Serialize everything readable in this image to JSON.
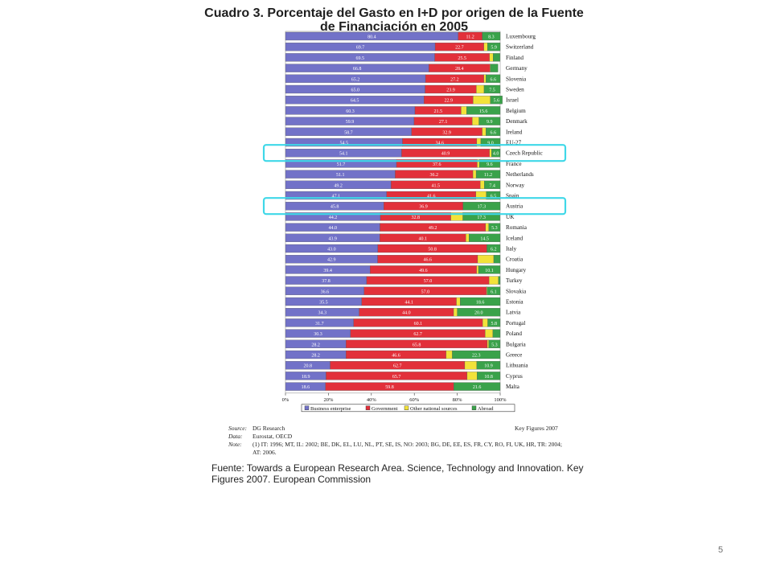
{
  "title": "Cuadro 3. Porcentaje del Gasto en I+D por origen de la Fuente de Financiación en 2005",
  "colors": {
    "business": "#7272c8",
    "government": "#e2303a",
    "other": "#f2e23a",
    "abroad": "#3aa24a",
    "highlight": "#3fd8e8"
  },
  "chart_data": {
    "type": "bar",
    "stacked": true,
    "orientation": "horizontal",
    "xlim": [
      0,
      100
    ],
    "x_ticks": [
      "0%",
      "20%",
      "40%",
      "60%",
      "80%",
      "100%"
    ],
    "categories": [
      "Luxembourg",
      "Switzerland",
      "Finland",
      "Germany",
      "Slovenia",
      "Sweden",
      "Israel",
      "Belgium",
      "Denmark",
      "Ireland",
      "EU-27",
      "Czech Republic",
      "France",
      "Netherlands",
      "Norway",
      "Spain",
      "Austria",
      "UK",
      "Romania",
      "Iceland",
      "Italy",
      "Croatia",
      "Hungary",
      "Turkey",
      "Slovakia",
      "Estonia",
      "Latvia",
      "Portugal",
      "Poland",
      "Bulgaria",
      "Greece",
      "Lithuania",
      "Cyprus",
      "Malta"
    ],
    "series": [
      {
        "name": "Business enterprise",
        "values": [
          80.4,
          69.7,
          69.5,
          66.8,
          65.2,
          65.0,
          64.5,
          60.3,
          59.9,
          58.7,
          54.5,
          54.1,
          51.7,
          51.1,
          49.2,
          47.1,
          45.8,
          44.2,
          44.0,
          43.9,
          43.0,
          42.9,
          39.4,
          37.8,
          36.6,
          35.5,
          34.3,
          31.7,
          30.3,
          28.2,
          28.2,
          20.8,
          18.9,
          18.6
        ]
      },
      {
        "name": "Government",
        "values": [
          11.2,
          22.7,
          25.5,
          28.4,
          27.2,
          23.9,
          22.9,
          21.5,
          27.1,
          32.9,
          34.6,
          40.9,
          37.6,
          36.2,
          41.5,
          41.6,
          36.9,
          32.8,
          49.2,
          40.1,
          50.8,
          46.6,
          49.6,
          57.0,
          57.0,
          44.1,
          44.0,
          60.1,
          62.7,
          65.8,
          46.6,
          62.7,
          65.7,
          59.8
        ]
      },
      {
        "name": "Other national sources",
        "values": [
          0.1,
          1.7,
          1.7,
          0.3,
          1.0,
          3.6,
          8.0,
          2.6,
          3.1,
          1.8,
          1.9,
          1.0,
          1.0,
          1.5,
          1.9,
          4.8,
          0.0,
          5.6,
          1.5,
          1.5,
          0.0,
          7.5,
          0.9,
          4.4,
          0.3,
          1.8,
          1.7,
          2.4,
          3.6,
          0.7,
          2.9,
          5.6,
          4.6,
          0.0
        ]
      },
      {
        "name": "Abroad",
        "values": [
          8.3,
          5.9,
          3.2,
          3.5,
          6.6,
          7.5,
          5.6,
          15.6,
          9.9,
          6.6,
          9.0,
          4.0,
          9.6,
          11.2,
          7.4,
          6.5,
          17.3,
          17.3,
          5.3,
          14.5,
          6.2,
          3.0,
          10.1,
          0.8,
          6.1,
          18.6,
          20.0,
          5.8,
          3.4,
          5.3,
          22.3,
          10.9,
          10.8,
          21.6
        ]
      }
    ],
    "labels": [
      [
        "80.4",
        "11.2",
        "",
        "8.3"
      ],
      [
        "69.7",
        "22.7",
        "",
        "5.9"
      ],
      [
        "69.5",
        "25.5",
        "",
        "3.2"
      ],
      [
        "66.8",
        "28.4",
        "",
        "3.5"
      ],
      [
        "65.2",
        "27.2",
        "",
        "6.6"
      ],
      [
        "65.0",
        "23.9",
        "",
        "7.5"
      ],
      [
        "64.5",
        "22.9",
        "",
        "5.6"
      ],
      [
        "60.3",
        "21.5",
        "",
        "15.6"
      ],
      [
        "59.9",
        "27.1",
        "",
        "9.9"
      ],
      [
        "58.7",
        "32.9",
        "",
        "6.6"
      ],
      [
        "54.5",
        "34.6",
        "",
        "9.0"
      ],
      [
        "54.1",
        "40.9",
        "",
        "4.0"
      ],
      [
        "51.7",
        "37.6",
        "",
        "9.6"
      ],
      [
        "51.1",
        "36.2",
        "",
        "11.2"
      ],
      [
        "49.2",
        "41.5",
        "",
        "7.4"
      ],
      [
        "47.1",
        "41.6",
        "",
        "6.5"
      ],
      [
        "45.8",
        "36.9",
        "",
        "17.3"
      ],
      [
        "44.2",
        "32.8",
        "",
        "17.3"
      ],
      [
        "44.0",
        "49.2",
        "",
        "5.3"
      ],
      [
        "43.9",
        "40.1",
        "",
        "14.5"
      ],
      [
        "43.0",
        "50.8",
        "",
        "6.2"
      ],
      [
        "42.9",
        "46.6",
        "",
        "3.0"
      ],
      [
        "39.4",
        "49.6",
        "",
        "10.1"
      ],
      [
        "37.8",
        "57.0",
        "",
        "0.8"
      ],
      [
        "36.6",
        "57.0",
        "",
        "6.1"
      ],
      [
        "35.5",
        "44.1",
        "",
        "18.6"
      ],
      [
        "34.3",
        "44.0",
        "",
        "20.0"
      ],
      [
        "31.7",
        "60.1",
        "",
        "5.8"
      ],
      [
        "30.3",
        "62.7",
        "",
        "3.4"
      ],
      [
        "28.2",
        "65.8",
        "",
        "5.3"
      ],
      [
        "28.2",
        "46.6",
        "",
        "22.3"
      ],
      [
        "20.8",
        "62.7",
        "",
        "10.9"
      ],
      [
        "18.9",
        "65.7",
        "",
        "10.8"
      ],
      [
        "18.6",
        "59.8",
        "",
        "21.6"
      ]
    ],
    "highlighted": [
      "Czech Republic",
      "Austria"
    ],
    "legend": [
      "Business enterprise",
      "Government",
      "Other national sources",
      "Abroad"
    ],
    "legend_position": "bottom"
  },
  "source": {
    "source_label": "Source:",
    "source_text": "DG Research",
    "data_label": "Data:",
    "data_text": "Eurostat, OECD",
    "note_label": "Note:",
    "note_text": "(1) IT: 1996; MT, IL: 2002; BE, DK, EL, LU, NL, PT, SE, IS, NO: 2003; BG, DE, EE, ES, FR, CY, RO, FI, UK, HR, TR: 2004; AT: 2006.",
    "key_figures": "Key Figures 2007"
  },
  "fuente": "Fuente: Towards a European Research Area. Science, Technology and Innovation. Key Figures 2007. European Commission",
  "page_number": "5"
}
